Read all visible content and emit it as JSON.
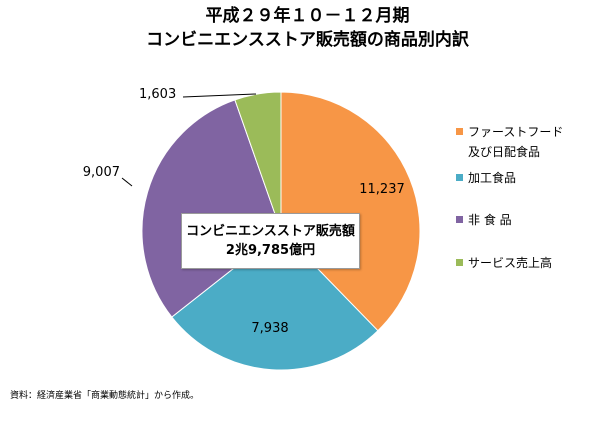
{
  "chart_data": {
    "type": "pie",
    "title": "平成２９年１０－１２月期",
    "subtitle": "コンビニエンスストア販売額の商品別内訳",
    "center_label": [
      "コンビニエンスストア販売額",
      "2兆9,785億円"
    ],
    "slices": [
      {
        "name": "ファーストフード 及び日配食品",
        "label": "11,237",
        "value": 11237,
        "color": "#f79646"
      },
      {
        "name": "加工食品",
        "label": "7,938",
        "value": 7938,
        "color": "#4bacc6"
      },
      {
        "name": "非 食 品",
        "label": "9,007",
        "value": 9007,
        "color": "#8064a2"
      },
      {
        "name": "サービス売上高",
        "label": "1,603",
        "value": 1603,
        "color": "#9bbb59"
      }
    ],
    "legend": {
      "position": "right",
      "entries": [
        {
          "lines": [
            "ファーストフード",
            "及び日配食品"
          ],
          "color": "#f79646"
        },
        {
          "lines": [
            "加工食品"
          ],
          "color": "#4bacc6"
        },
        {
          "lines": [
            "非 食 品"
          ],
          "color": "#8064a2"
        },
        {
          "lines": [
            "サービス売上高"
          ],
          "color": "#9bbb59"
        }
      ]
    }
  },
  "source": "資料：経済産業省「商業動態統計」から作成。"
}
